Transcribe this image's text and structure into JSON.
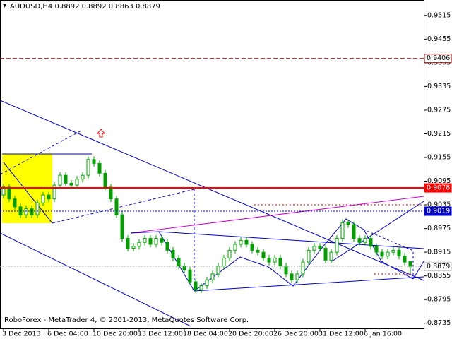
{
  "chart_data": {
    "type": "candlestick",
    "title": "AUDUSD,H4  0.8892 0.8892 0.8863 0.8879",
    "footer": "RoboForex - MetaTrader 4, © 2001-2013, MetaQuotes Software Corp.",
    "categories": [
      "3 Dec 2013",
      null,
      null,
      null,
      null,
      null,
      null,
      null,
      "6 Dec 04:00",
      null,
      null,
      null,
      null,
      null,
      null,
      null,
      "10 Dec 20:00",
      null,
      null,
      null,
      null,
      null,
      null,
      null,
      "13 Dec 12:00",
      null,
      null,
      null,
      null,
      null,
      null,
      null,
      "18 Dec 04:00",
      null,
      null,
      null,
      null,
      null,
      null,
      null,
      "20 Dec 20:00",
      null,
      null,
      null,
      null,
      null,
      null,
      null,
      "26 Dec 20:00",
      null,
      null,
      null,
      null,
      null,
      null,
      null,
      "31 Dec 12:00",
      null,
      null,
      null,
      null,
      null,
      null,
      null,
      "6 Jan 16:00",
      null,
      null,
      null,
      null,
      null,
      null,
      null,
      null
    ],
    "open": [
      0.906,
      0.908,
      0.905,
      0.903,
      0.901,
      0.9025,
      0.901,
      0.904,
      0.906,
      0.905,
      0.9085,
      0.911,
      0.909,
      0.9085,
      0.91,
      0.911,
      0.915,
      0.914,
      0.9115,
      0.908,
      0.905,
      0.901,
      0.895,
      0.8925,
      0.893,
      0.894,
      0.895,
      0.8935,
      0.895,
      0.894,
      0.892,
      0.89,
      0.888,
      0.887,
      0.884,
      0.882,
      0.883,
      0.8845,
      0.886,
      0.888,
      0.89,
      0.892,
      0.8935,
      0.8945,
      0.8935,
      0.892,
      0.8915,
      0.89,
      0.889,
      0.89,
      0.888,
      0.886,
      0.8845,
      0.886,
      0.889,
      0.892,
      0.893,
      0.8925,
      0.8895,
      0.8915,
      0.895,
      0.899,
      0.8985,
      0.895,
      0.894,
      0.895,
      0.893,
      0.8915,
      0.8905,
      0.8915,
      0.892,
      0.8905,
      0.8892
    ],
    "high": [
      0.9088,
      0.9088,
      0.9058,
      0.9038,
      0.9033,
      0.9033,
      0.9048,
      0.9068,
      0.9068,
      0.9093,
      0.9118,
      0.9118,
      0.9098,
      0.9108,
      0.9118,
      0.9158,
      0.9158,
      0.9148,
      0.9123,
      0.9088,
      0.9058,
      0.9018,
      0.8958,
      0.8938,
      0.8948,
      0.8958,
      0.8958,
      0.8958,
      0.8958,
      0.8948,
      0.8928,
      0.8908,
      0.8888,
      0.8878,
      0.8848,
      0.8838,
      0.8853,
      0.8868,
      0.8888,
      0.8908,
      0.8928,
      0.8943,
      0.8953,
      0.8953,
      0.8943,
      0.8928,
      0.8923,
      0.8908,
      0.8908,
      0.8908,
      0.8888,
      0.8868,
      0.8868,
      0.8898,
      0.8928,
      0.8938,
      0.8938,
      0.8933,
      0.8923,
      0.8958,
      0.8998,
      0.8998,
      0.8993,
      0.8958,
      0.8958,
      0.8958,
      0.8938,
      0.8923,
      0.8923,
      0.8928,
      0.8928,
      0.8913,
      0.8892
    ],
    "low": [
      0.9052,
      0.9042,
      0.9022,
      0.9002,
      0.9002,
      0.9002,
      0.9002,
      0.9032,
      0.9042,
      0.9042,
      0.9077,
      0.9082,
      0.9077,
      0.9077,
      0.9092,
      0.9102,
      0.9132,
      0.9107,
      0.9072,
      0.9042,
      0.9002,
      0.8942,
      0.8917,
      0.8917,
      0.8922,
      0.8932,
      0.8927,
      0.8927,
      0.8932,
      0.8912,
      0.8892,
      0.8872,
      0.8862,
      0.8832,
      0.8812,
      0.8812,
      0.8822,
      0.8837,
      0.8852,
      0.8872,
      0.8892,
      0.8912,
      0.8927,
      0.8927,
      0.8912,
      0.8907,
      0.8892,
      0.8882,
      0.8882,
      0.8872,
      0.8852,
      0.8837,
      0.8837,
      0.8852,
      0.8882,
      0.8912,
      0.8917,
      0.8887,
      0.8887,
      0.8907,
      0.8942,
      0.8977,
      0.8942,
      0.8932,
      0.8932,
      0.8922,
      0.8907,
      0.8897,
      0.8897,
      0.8907,
      0.8897,
      0.8882,
      0.8863
    ],
    "close": [
      0.908,
      0.905,
      0.903,
      0.901,
      0.9025,
      0.901,
      0.904,
      0.906,
      0.905,
      0.9085,
      0.911,
      0.909,
      0.9085,
      0.91,
      0.911,
      0.915,
      0.914,
      0.9115,
      0.908,
      0.905,
      0.901,
      0.895,
      0.8925,
      0.893,
      0.894,
      0.895,
      0.8935,
      0.895,
      0.894,
      0.892,
      0.89,
      0.888,
      0.887,
      0.884,
      0.882,
      0.883,
      0.8845,
      0.886,
      0.888,
      0.89,
      0.892,
      0.8935,
      0.8945,
      0.8935,
      0.892,
      0.8915,
      0.89,
      0.889,
      0.89,
      0.888,
      0.886,
      0.8845,
      0.886,
      0.889,
      0.892,
      0.893,
      0.8925,
      0.8895,
      0.8915,
      0.895,
      0.899,
      0.8985,
      0.895,
      0.894,
      0.895,
      0.893,
      0.8915,
      0.8905,
      0.8915,
      0.892,
      0.8905,
      0.889,
      0.8879
    ],
    "color": "#00a000",
    "ylim": [
      0.8722,
      0.9554
    ],
    "yticks": [
      0.9515,
      0.9455,
      0.9395,
      0.9335,
      0.9275,
      0.9215,
      0.9155,
      0.9095,
      0.9035,
      0.8975,
      0.8915,
      0.8855,
      0.8795,
      0.8735
    ],
    "levels": [
      {
        "value": 0.9406,
        "color": "#800000",
        "style": "dashed",
        "label_fill": "#ffffff",
        "label_color": "#000000"
      },
      {
        "value": 0.9078,
        "color": "#ff0000",
        "style": "solid",
        "label_fill": "#ff0000",
        "label_color": "#ffffff"
      },
      {
        "value": 0.9019,
        "color": "#0000cc",
        "style": "dotted",
        "label_fill": "#0000cc",
        "label_color": "#ffffff"
      },
      {
        "value": 0.8879,
        "color": "#c0c0c0",
        "style": "dotted",
        "label_fill": "#ffffff",
        "label_color": "#000000"
      }
    ]
  }
}
